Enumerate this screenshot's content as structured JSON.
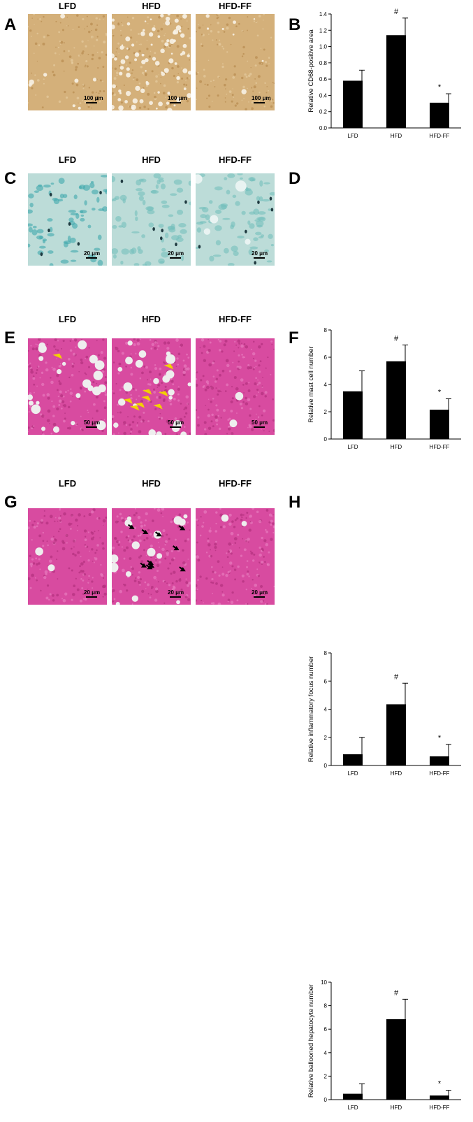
{
  "figure": {
    "rows": [
      {
        "image_letter": "A",
        "chart_letter": "B",
        "images": [
          {
            "label": "LFD",
            "scale": "100 μm",
            "stain": "ihc"
          },
          {
            "label": "HFD",
            "scale": "100 μm",
            "stain": "ihc"
          },
          {
            "label": "HFD-FF",
            "scale": "100 μm",
            "stain": "ihc"
          }
        ]
      },
      {
        "image_letter": "C",
        "chart_letter": "D",
        "images": [
          {
            "label": "LFD",
            "scale": "20 μm",
            "stain": "toluidine"
          },
          {
            "label": "HFD",
            "scale": "20 μm",
            "stain": "toluidine"
          },
          {
            "label": "HFD-FF",
            "scale": "20 μm",
            "stain": "toluidine"
          }
        ]
      },
      {
        "image_letter": "E",
        "chart_letter": "F",
        "images": [
          {
            "label": "LFD",
            "scale": "50 μm",
            "stain": "he"
          },
          {
            "label": "HFD",
            "scale": "50 μm",
            "stain": "he"
          },
          {
            "label": "HFD-FF",
            "scale": "50 μm",
            "stain": "he"
          }
        ]
      },
      {
        "image_letter": "G",
        "chart_letter": "H",
        "images": [
          {
            "label": "LFD",
            "scale": "20 μm",
            "stain": "he"
          },
          {
            "label": "HFD",
            "scale": "20 μm",
            "stain": "he"
          },
          {
            "label": "HFD-FF",
            "scale": "20 μm",
            "stain": "he"
          }
        ]
      }
    ],
    "colors": {
      "ihc": "#d4b07a",
      "toluidine": "#bcdcd8",
      "he": "#d84ba0",
      "yellow_arrow": "#f2d200",
      "bar": "#000000"
    }
  },
  "chart_data": [
    {
      "type": "bar",
      "ylabel": "Relative CD68-positive area",
      "categories": [
        "LFD",
        "HFD",
        "HFD-FF"
      ],
      "values": [
        0.58,
        1.14,
        0.31
      ],
      "errors": [
        0.13,
        0.21,
        0.11
      ],
      "annotations": [
        "",
        "#",
        "*"
      ],
      "ylim": [
        0.0,
        1.4
      ],
      "yticks": [
        "0.0",
        "0.2",
        "0.4",
        "0.6",
        "0.8",
        "1.0",
        "1.2",
        "1.4"
      ]
    },
    {
      "type": "bar",
      "ylabel": "Relative mast cell number",
      "categories": [
        "LFD",
        "HFD",
        "HFD-FF"
      ],
      "values": [
        3.5,
        5.7,
        2.15
      ],
      "errors": [
        1.5,
        1.2,
        0.8
      ],
      "annotations": [
        "",
        "#",
        "*"
      ],
      "ylim": [
        0,
        8
      ],
      "yticks": [
        "0",
        "2",
        "4",
        "6",
        "8"
      ]
    },
    {
      "type": "bar",
      "ylabel": "Relative inflammatory focus number",
      "categories": [
        "LFD",
        "HFD",
        "HFD-FF"
      ],
      "values": [
        0.8,
        4.35,
        0.65
      ],
      "errors": [
        1.2,
        1.5,
        0.85
      ],
      "annotations": [
        "",
        "#",
        "*"
      ],
      "ylim": [
        0,
        8
      ],
      "yticks": [
        "0",
        "2",
        "4",
        "6",
        "8"
      ]
    },
    {
      "type": "bar",
      "ylabel": "Relative ballooned hepatocyte number",
      "categories": [
        "LFD",
        "HFD",
        "HFD-FF"
      ],
      "values": [
        0.5,
        6.85,
        0.35
      ],
      "errors": [
        0.85,
        1.7,
        0.45
      ],
      "annotations": [
        "",
        "#",
        "*"
      ],
      "ylim": [
        0,
        10
      ],
      "yticks": [
        "0",
        "2",
        "4",
        "6",
        "8",
        "10"
      ]
    }
  ]
}
